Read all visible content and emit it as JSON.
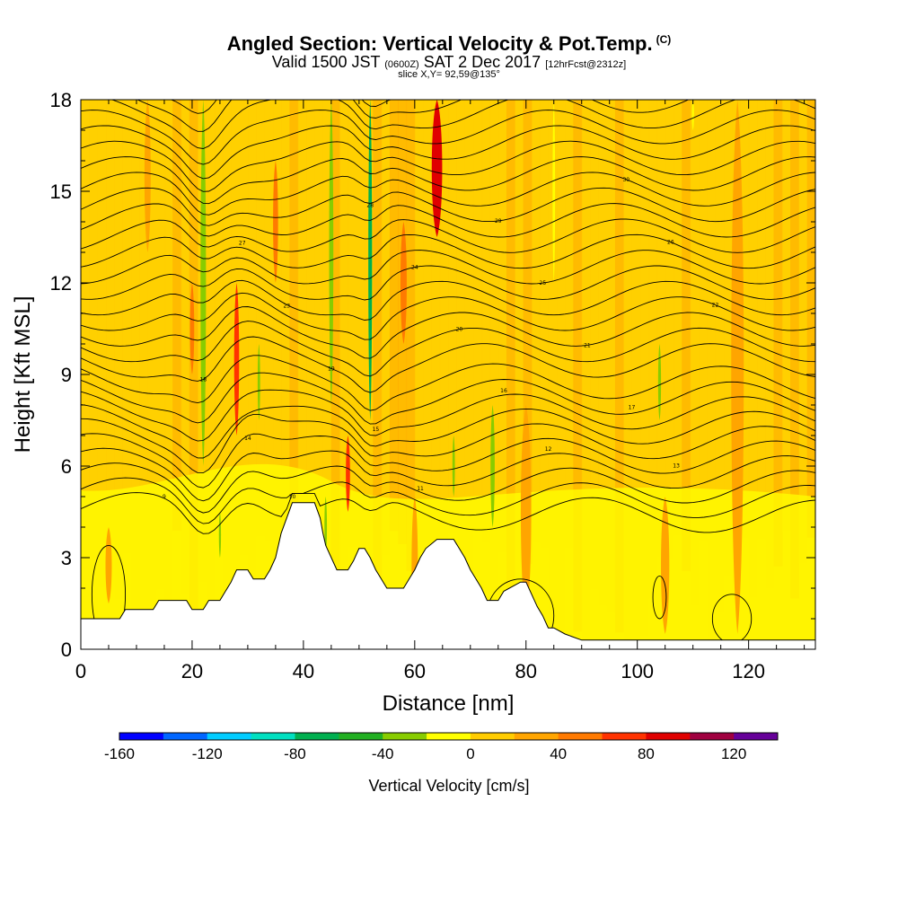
{
  "title": {
    "main": "Angled Section: Vertical Velocity & Pot.Temp.",
    "copyright": "(C)",
    "valid_prefix": "Valid 1500 JST",
    "valid_utc": "(0600Z)",
    "valid_date": "SAT 2 Dec 2017",
    "forecast": "[12hrFcst@2312z]",
    "slice": "slice X,Y= 92,59@135°"
  },
  "chart_data": {
    "type": "heatmap",
    "xlabel": "Distance [nm]",
    "ylabel": "Height [Kft MSL]",
    "xlim": [
      0,
      132
    ],
    "ylim": [
      0,
      18
    ],
    "x_ticks": [
      0,
      20,
      40,
      60,
      80,
      100,
      120
    ],
    "y_ticks": [
      0,
      3,
      6,
      9,
      12,
      15,
      18
    ],
    "colorbar": {
      "label": "Vertical Velocity [cm/s]",
      "range": [
        -160,
        140
      ],
      "step": 20,
      "tick_labels": [
        -160,
        -120,
        -80,
        -40,
        0,
        40,
        80,
        120
      ],
      "colors": [
        "#0000ff",
        "#0066ff",
        "#00ccff",
        "#00e0c0",
        "#00b050",
        "#22b022",
        "#88cc00",
        "#ffff00",
        "#ffcc00",
        "#ffa500",
        "#ff7a00",
        "#ff3300",
        "#e00000",
        "#a00040",
        "#660099"
      ]
    },
    "terrain": [
      [
        0,
        1.0
      ],
      [
        2,
        1.0
      ],
      [
        7,
        1.0
      ],
      [
        8,
        1.3
      ],
      [
        13,
        1.3
      ],
      [
        14,
        1.6
      ],
      [
        19,
        1.6
      ],
      [
        20,
        1.3
      ],
      [
        22,
        1.3
      ],
      [
        23,
        1.6
      ],
      [
        25,
        1.6
      ],
      [
        26,
        1.9
      ],
      [
        27,
        2.2
      ],
      [
        28,
        2.6
      ],
      [
        30,
        2.6
      ],
      [
        31,
        2.3
      ],
      [
        33,
        2.3
      ],
      [
        34,
        2.6
      ],
      [
        35,
        3.0
      ],
      [
        35.5,
        3.4
      ],
      [
        36,
        3.8
      ],
      [
        37,
        4.3
      ],
      [
        38,
        4.8
      ],
      [
        42,
        4.8
      ],
      [
        43,
        4.3
      ],
      [
        43.5,
        3.8
      ],
      [
        44,
        3.4
      ],
      [
        45,
        3.0
      ],
      [
        46,
        2.6
      ],
      [
        48,
        2.6
      ],
      [
        49,
        2.9
      ],
      [
        50,
        3.3
      ],
      [
        51,
        3.3
      ],
      [
        52,
        3.0
      ],
      [
        53,
        2.6
      ],
      [
        54,
        2.3
      ],
      [
        55,
        2.0
      ],
      [
        58,
        2.0
      ],
      [
        59,
        2.3
      ],
      [
        60,
        2.6
      ],
      [
        61,
        3.0
      ],
      [
        62,
        3.3
      ],
      [
        64,
        3.6
      ],
      [
        67,
        3.6
      ],
      [
        68,
        3.3
      ],
      [
        69,
        3.0
      ],
      [
        70,
        2.6
      ],
      [
        71,
        2.3
      ],
      [
        72,
        2.0
      ],
      [
        73,
        1.6
      ],
      [
        75,
        1.6
      ],
      [
        76,
        1.9
      ],
      [
        79,
        2.2
      ],
      [
        80,
        2.2
      ],
      [
        81,
        1.8
      ],
      [
        82,
        1.4
      ],
      [
        83,
        1.1
      ],
      [
        84,
        0.7
      ],
      [
        85,
        0.7
      ],
      [
        87,
        0.5
      ],
      [
        90,
        0.3
      ],
      [
        132,
        0.3
      ]
    ],
    "updrafts": [
      {
        "x": 64,
        "y0": 13.5,
        "y1": 18,
        "w": 2.5,
        "v": 80
      },
      {
        "x": 28,
        "y0": 7,
        "y1": 12,
        "w": 1.2,
        "v": 60
      },
      {
        "x": 20,
        "y0": 9,
        "y1": 12,
        "w": 1.0,
        "v": 40
      },
      {
        "x": 48,
        "y0": 4.5,
        "y1": 7,
        "w": 1.0,
        "v": 60
      },
      {
        "x": 35,
        "y0": 12,
        "y1": 16,
        "w": 1.2,
        "v": 40
      },
      {
        "x": 12,
        "y0": 13,
        "y1": 18,
        "w": 1.5,
        "v": 20
      },
      {
        "x": 80,
        "y0": 1,
        "y1": 8,
        "w": 2.5,
        "v": 20
      },
      {
        "x": 105,
        "y0": 0.5,
        "y1": 5,
        "w": 2,
        "v": 20
      },
      {
        "x": 118,
        "y0": 0.5,
        "y1": 18,
        "w": 3,
        "v": 20
      },
      {
        "x": 58,
        "y0": 10,
        "y1": 14,
        "w": 1.5,
        "v": 40
      },
      {
        "x": 5,
        "y0": 1.5,
        "y1": 4,
        "w": 1.5,
        "v": 20
      },
      {
        "x": 60,
        "y0": 0.5,
        "y1": 5,
        "w": 1.5,
        "v": 20
      }
    ],
    "downdrafts": [
      {
        "x": 52,
        "y0": 7.5,
        "y1": 18,
        "w": 0.9,
        "v": -80
      },
      {
        "x": 45,
        "y0": 8,
        "y1": 18,
        "w": 1.0,
        "v": -40
      },
      {
        "x": 22,
        "y0": 6,
        "y1": 18,
        "w": 1.3,
        "v": -40
      },
      {
        "x": 74,
        "y0": 4,
        "y1": 8,
        "w": 1.0,
        "v": -40
      },
      {
        "x": 67,
        "y0": 5,
        "y1": 7,
        "w": 0.6,
        "v": -40
      },
      {
        "x": 104,
        "y0": 7.5,
        "y1": 10,
        "w": 0.7,
        "v": -40
      },
      {
        "x": 32,
        "y0": 7.5,
        "y1": 10,
        "w": 0.6,
        "v": -40
      },
      {
        "x": 85,
        "y0": 12,
        "y1": 18,
        "w": 0.6,
        "v": -20
      },
      {
        "x": 110,
        "y0": 17,
        "y1": 18,
        "w": 0.5,
        "v": -20
      },
      {
        "x": 25,
        "y0": 3,
        "y1": 4.5,
        "w": 0.5,
        "v": -40
      },
      {
        "x": 44,
        "y0": 3,
        "y1": 5,
        "w": 0.6,
        "v": -40
      }
    ],
    "theta_contours": {
      "count": 33,
      "labels": [
        "30",
        "29",
        "28",
        "27",
        "26",
        "25",
        "24",
        "23",
        "22",
        "21",
        "20",
        "19",
        "18",
        "17",
        "16",
        "15",
        "14",
        "13",
        "12",
        "11",
        "10",
        "9"
      ]
    }
  }
}
